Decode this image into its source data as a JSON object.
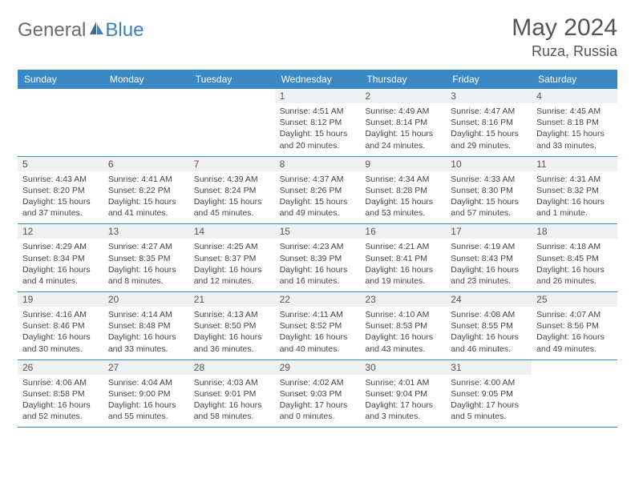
{
  "logo": {
    "general": "General",
    "blue": "Blue"
  },
  "title": "May 2024",
  "location": "Ruza, Russia",
  "colors": {
    "header_bg": "#3a88c6",
    "header_text": "#ffffff",
    "daynum_bg": "#eef0f2",
    "border": "#3a88c6",
    "logo_gray": "#6b6b6b",
    "logo_blue": "#3b82c4"
  },
  "day_names": [
    "Sunday",
    "Monday",
    "Tuesday",
    "Wednesday",
    "Thursday",
    "Friday",
    "Saturday"
  ],
  "weeks": [
    [
      null,
      null,
      null,
      {
        "n": "1",
        "sr": "Sunrise: 4:51 AM",
        "ss": "Sunset: 8:12 PM",
        "dl": "Daylight: 15 hours and 20 minutes."
      },
      {
        "n": "2",
        "sr": "Sunrise: 4:49 AM",
        "ss": "Sunset: 8:14 PM",
        "dl": "Daylight: 15 hours and 24 minutes."
      },
      {
        "n": "3",
        "sr": "Sunrise: 4:47 AM",
        "ss": "Sunset: 8:16 PM",
        "dl": "Daylight: 15 hours and 29 minutes."
      },
      {
        "n": "4",
        "sr": "Sunrise: 4:45 AM",
        "ss": "Sunset: 8:18 PM",
        "dl": "Daylight: 15 hours and 33 minutes."
      }
    ],
    [
      {
        "n": "5",
        "sr": "Sunrise: 4:43 AM",
        "ss": "Sunset: 8:20 PM",
        "dl": "Daylight: 15 hours and 37 minutes."
      },
      {
        "n": "6",
        "sr": "Sunrise: 4:41 AM",
        "ss": "Sunset: 8:22 PM",
        "dl": "Daylight: 15 hours and 41 minutes."
      },
      {
        "n": "7",
        "sr": "Sunrise: 4:39 AM",
        "ss": "Sunset: 8:24 PM",
        "dl": "Daylight: 15 hours and 45 minutes."
      },
      {
        "n": "8",
        "sr": "Sunrise: 4:37 AM",
        "ss": "Sunset: 8:26 PM",
        "dl": "Daylight: 15 hours and 49 minutes."
      },
      {
        "n": "9",
        "sr": "Sunrise: 4:34 AM",
        "ss": "Sunset: 8:28 PM",
        "dl": "Daylight: 15 hours and 53 minutes."
      },
      {
        "n": "10",
        "sr": "Sunrise: 4:33 AM",
        "ss": "Sunset: 8:30 PM",
        "dl": "Daylight: 15 hours and 57 minutes."
      },
      {
        "n": "11",
        "sr": "Sunrise: 4:31 AM",
        "ss": "Sunset: 8:32 PM",
        "dl": "Daylight: 16 hours and 1 minute."
      }
    ],
    [
      {
        "n": "12",
        "sr": "Sunrise: 4:29 AM",
        "ss": "Sunset: 8:34 PM",
        "dl": "Daylight: 16 hours and 4 minutes."
      },
      {
        "n": "13",
        "sr": "Sunrise: 4:27 AM",
        "ss": "Sunset: 8:35 PM",
        "dl": "Daylight: 16 hours and 8 minutes."
      },
      {
        "n": "14",
        "sr": "Sunrise: 4:25 AM",
        "ss": "Sunset: 8:37 PM",
        "dl": "Daylight: 16 hours and 12 minutes."
      },
      {
        "n": "15",
        "sr": "Sunrise: 4:23 AM",
        "ss": "Sunset: 8:39 PM",
        "dl": "Daylight: 16 hours and 16 minutes."
      },
      {
        "n": "16",
        "sr": "Sunrise: 4:21 AM",
        "ss": "Sunset: 8:41 PM",
        "dl": "Daylight: 16 hours and 19 minutes."
      },
      {
        "n": "17",
        "sr": "Sunrise: 4:19 AM",
        "ss": "Sunset: 8:43 PM",
        "dl": "Daylight: 16 hours and 23 minutes."
      },
      {
        "n": "18",
        "sr": "Sunrise: 4:18 AM",
        "ss": "Sunset: 8:45 PM",
        "dl": "Daylight: 16 hours and 26 minutes."
      }
    ],
    [
      {
        "n": "19",
        "sr": "Sunrise: 4:16 AM",
        "ss": "Sunset: 8:46 PM",
        "dl": "Daylight: 16 hours and 30 minutes."
      },
      {
        "n": "20",
        "sr": "Sunrise: 4:14 AM",
        "ss": "Sunset: 8:48 PM",
        "dl": "Daylight: 16 hours and 33 minutes."
      },
      {
        "n": "21",
        "sr": "Sunrise: 4:13 AM",
        "ss": "Sunset: 8:50 PM",
        "dl": "Daylight: 16 hours and 36 minutes."
      },
      {
        "n": "22",
        "sr": "Sunrise: 4:11 AM",
        "ss": "Sunset: 8:52 PM",
        "dl": "Daylight: 16 hours and 40 minutes."
      },
      {
        "n": "23",
        "sr": "Sunrise: 4:10 AM",
        "ss": "Sunset: 8:53 PM",
        "dl": "Daylight: 16 hours and 43 minutes."
      },
      {
        "n": "24",
        "sr": "Sunrise: 4:08 AM",
        "ss": "Sunset: 8:55 PM",
        "dl": "Daylight: 16 hours and 46 minutes."
      },
      {
        "n": "25",
        "sr": "Sunrise: 4:07 AM",
        "ss": "Sunset: 8:56 PM",
        "dl": "Daylight: 16 hours and 49 minutes."
      }
    ],
    [
      {
        "n": "26",
        "sr": "Sunrise: 4:06 AM",
        "ss": "Sunset: 8:58 PM",
        "dl": "Daylight: 16 hours and 52 minutes."
      },
      {
        "n": "27",
        "sr": "Sunrise: 4:04 AM",
        "ss": "Sunset: 9:00 PM",
        "dl": "Daylight: 16 hours and 55 minutes."
      },
      {
        "n": "28",
        "sr": "Sunrise: 4:03 AM",
        "ss": "Sunset: 9:01 PM",
        "dl": "Daylight: 16 hours and 58 minutes."
      },
      {
        "n": "29",
        "sr": "Sunrise: 4:02 AM",
        "ss": "Sunset: 9:03 PM",
        "dl": "Daylight: 17 hours and 0 minutes."
      },
      {
        "n": "30",
        "sr": "Sunrise: 4:01 AM",
        "ss": "Sunset: 9:04 PM",
        "dl": "Daylight: 17 hours and 3 minutes."
      },
      {
        "n": "31",
        "sr": "Sunrise: 4:00 AM",
        "ss": "Sunset: 9:05 PM",
        "dl": "Daylight: 17 hours and 5 minutes."
      },
      null
    ]
  ]
}
